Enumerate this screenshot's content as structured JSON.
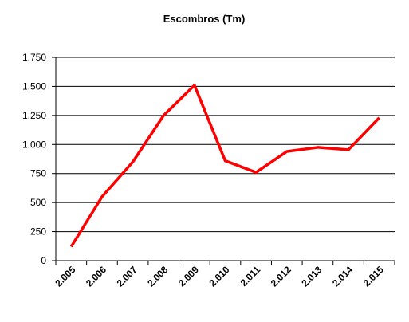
{
  "chart_data": {
    "type": "line",
    "title": "Escombros (Tm)",
    "categories": [
      "2.005",
      "2.006",
      "2.007",
      "2.008",
      "2.009",
      "2.010",
      "2.011",
      "2.012",
      "2.013",
      "2.014",
      "2.015"
    ],
    "series": [
      {
        "name": "Escombros",
        "color": "#ff0000",
        "values": [
          120,
          550,
          850,
          1250,
          1510,
          860,
          760,
          940,
          975,
          955,
          1230
        ]
      }
    ],
    "ylim": [
      0,
      1750
    ],
    "yticks": [
      0,
      250,
      500,
      750,
      {
        "value": 1000,
        "label": "1.000"
      },
      {
        "value": 1250,
        "label": "1.250"
      },
      {
        "value": 1500,
        "label": "1.500"
      },
      {
        "value": 1750,
        "label": "1.750"
      }
    ],
    "grid": true
  }
}
